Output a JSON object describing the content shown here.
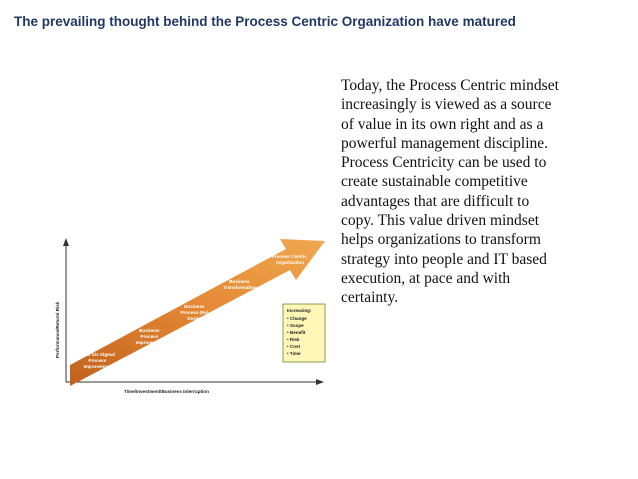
{
  "slide": {
    "title": "The prevailing thought behind the Process Centric Organization have matured",
    "body_lines": [
      "Today, the  Process Centric mindset",
      "increasingly is viewed as a source",
      "of value in its own right and as a",
      "powerful management discipline.",
      "Process Centricity can be used to",
      "create sustainable competitive",
      "advantages that are difficult to",
      "copy. This value driven mindset",
      "helps organizations to transform",
      "strategy into people and IT based",
      "execution, at pace and with",
      "certainty."
    ]
  },
  "diagram": {
    "y_axis_label": "Performance/Return/ Risk",
    "x_axis_label": "Time/Investment/Business Interruption",
    "steps": [
      [
        "Lean Six Sigma/",
        "Process",
        "Improvement"
      ],
      [
        "Business",
        "Process",
        "Improvement"
      ],
      [
        "Business",
        "Process (Re)",
        "Design"
      ],
      [
        "Business",
        "Transformation"
      ],
      [
        "Process Centric",
        "Organization"
      ]
    ],
    "legend": {
      "heading": "Increasing:",
      "items": [
        "Change",
        "Scope",
        "Benefit",
        "Risk",
        "Cost",
        "Time"
      ]
    },
    "colors": {
      "arrow_dark": "#c0621c",
      "arrow_light": "#f0a850",
      "legend_bg": "#fff6b8",
      "legend_border": "#6a8a30"
    }
  }
}
